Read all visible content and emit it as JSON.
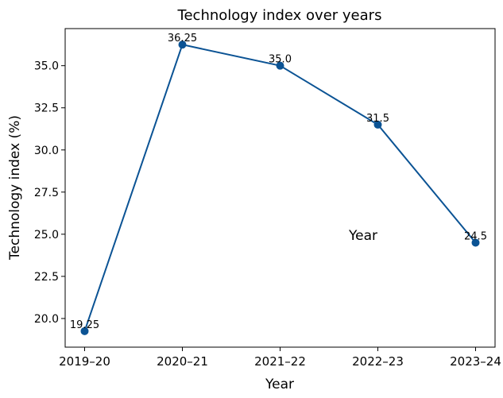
{
  "chart_data": {
    "type": "line",
    "title": "Technology index over years",
    "xlabel": "Year",
    "ylabel": "Technology index (%)",
    "annotation": "Year",
    "categories": [
      "2019–20",
      "2020–21",
      "2021–22",
      "2022–23",
      "2023–24"
    ],
    "series": [
      {
        "values": [
          19.25,
          36.25,
          35.0,
          31.5,
          24.5
        ],
        "data_labels": [
          "19.25",
          "36.25",
          "35.0",
          "31.5",
          "24.5"
        ],
        "color": "#0b5394",
        "marker": "circle"
      }
    ],
    "ylim": [
      18.3,
      37.2
    ],
    "yticks": [
      20.0,
      22.5,
      25.0,
      27.5,
      30.0,
      32.5,
      35.0
    ],
    "ytick_labels": [
      "20.0",
      "22.5",
      "25.0",
      "27.5",
      "30.0",
      "32.5",
      "35.0"
    ],
    "grid": false,
    "legend": false
  }
}
